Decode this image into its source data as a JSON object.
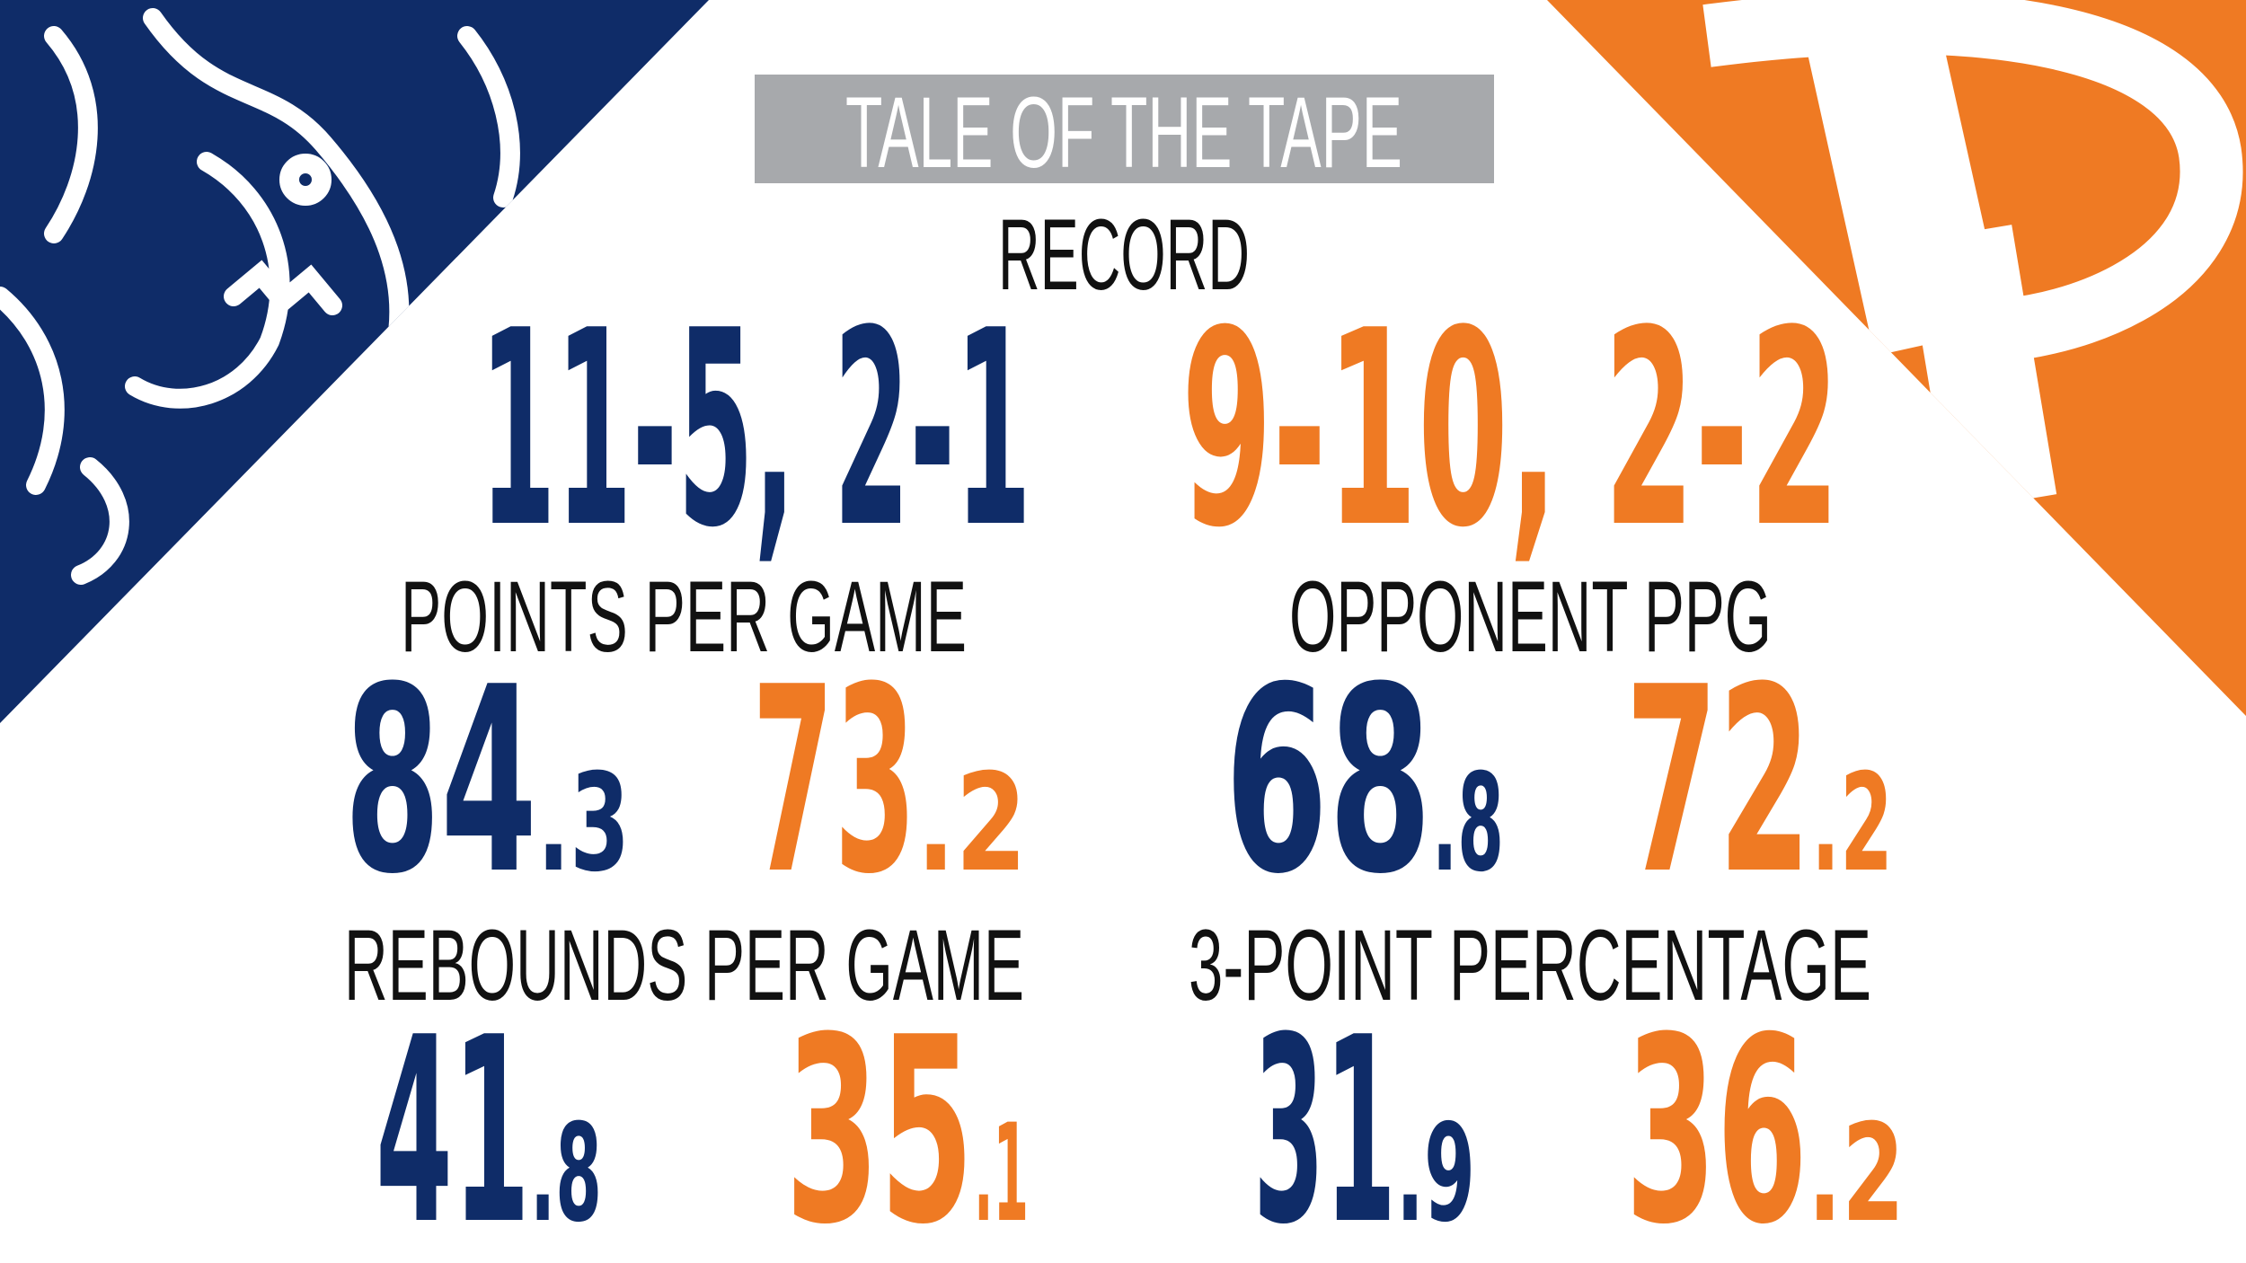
{
  "title": "TALE OF THE TAPE",
  "record": {
    "label": "RECORD",
    "teams": [
      "11-5, 2-1",
      "9-10, 2-2"
    ]
  },
  "stats": [
    {
      "label": "POINTS PER GAME",
      "values": [
        {
          "whole": "84",
          "decimal": ".3"
        },
        {
          "whole": "73",
          "decimal": ".2"
        }
      ]
    },
    {
      "label": "OPPONENT PPG",
      "values": [
        {
          "whole": "68",
          "decimal": ".8"
        },
        {
          "whole": "72",
          "decimal": ".2"
        }
      ]
    },
    {
      "label": "REBOUNDS PER GAME",
      "values": [
        {
          "whole": "41",
          "decimal": ".8"
        },
        {
          "whole": "35",
          "decimal": ".1"
        }
      ]
    },
    {
      "label": "3-POINT PERCENTAGE",
      "values": [
        {
          "whole": "31",
          "decimal": ".9"
        },
        {
          "whole": "36",
          "decimal": ".2"
        }
      ]
    }
  ]
}
